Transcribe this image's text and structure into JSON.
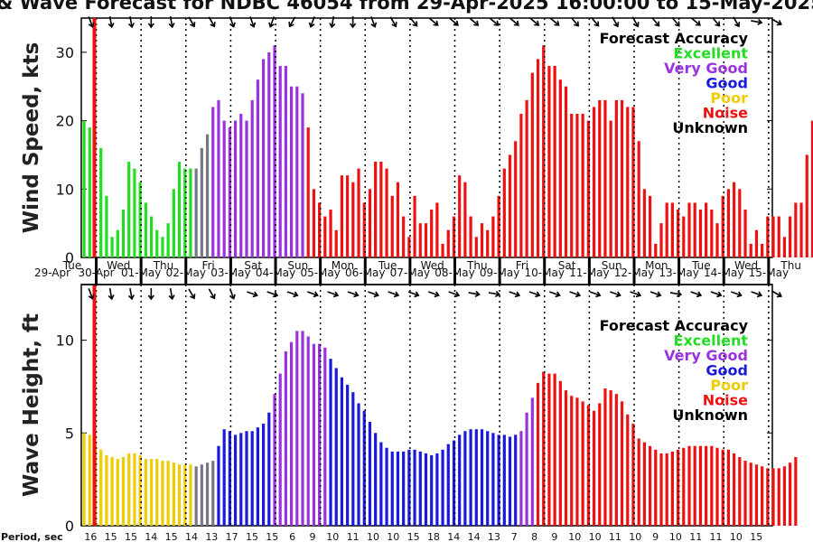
{
  "title": "& Wave Forecast for NDBC 46054 from 29-Apr-2025 16:00:00 to 15-May-2025",
  "colors": {
    "excellent": "#22dd22",
    "very_good": "#9933dd",
    "good": "#1a1add",
    "poor": "#eecc00",
    "noise": "#ee1111",
    "unknown": "#000000",
    "transition": "#777788"
  },
  "legend": {
    "heading": "Forecast Accuracy",
    "items": [
      {
        "label": "Excellent",
        "color": "#22dd22"
      },
      {
        "label": "Very Good",
        "color": "#9933dd"
      },
      {
        "label": "Good",
        "color": "#1a1add"
      },
      {
        "label": "Poor",
        "color": "#eecc00"
      },
      {
        "label": "Noise",
        "color": "#ee1111"
      },
      {
        "label": "Unknown",
        "color": "#000000"
      }
    ]
  },
  "days": [
    {
      "day": "Tue",
      "date": "29-Apr"
    },
    {
      "day": "Wed",
      "date": "30-Apr"
    },
    {
      "day": "Thu",
      "date": "01-May"
    },
    {
      "day": "Fri",
      "date": "02-May"
    },
    {
      "day": "Sat",
      "date": "03-May"
    },
    {
      "day": "Sun",
      "date": "04-May"
    },
    {
      "day": "Mon",
      "date": "05-May"
    },
    {
      "day": "Tue",
      "date": "06-May"
    },
    {
      "day": "Wed",
      "date": "07-May"
    },
    {
      "day": "Thu",
      "date": "08-May"
    },
    {
      "day": "Fri",
      "date": "09-May"
    },
    {
      "day": "Sat",
      "date": "10-May"
    },
    {
      "day": "Sun",
      "date": "11-May"
    },
    {
      "day": "Mon",
      "date": "12-May"
    },
    {
      "day": "Tue",
      "date": "13-May"
    },
    {
      "day": "Wed",
      "date": "14-May"
    },
    {
      "day": "Thu",
      "date": "15-May"
    }
  ],
  "period_label": "Period, sec",
  "periods": [
    "16",
    "15",
    "15",
    "14",
    "15",
    "14",
    "13",
    "17",
    "15",
    "15",
    "6",
    "9",
    "10",
    "11",
    "10",
    "10",
    "15",
    "18",
    "14",
    "14",
    "13",
    "7",
    "8",
    "9",
    "10",
    "10",
    "11",
    "10",
    "9",
    "10",
    "11",
    "11",
    "10",
    "15"
  ],
  "chart_data": [
    {
      "type": "bar",
      "name": "wind",
      "ylabel": "Wind Speed, kts",
      "ylim": [
        0,
        35
      ],
      "yticks": [
        0,
        10,
        20,
        30
      ],
      "x_unit": "hours from 29-Apr 16:00",
      "values": [
        20,
        19,
        0,
        16,
        9,
        3,
        4,
        7,
        14,
        13,
        11,
        8,
        6,
        4,
        3,
        5,
        10,
        14,
        13,
        13,
        13,
        16,
        18,
        22,
        23,
        20,
        19,
        20,
        21,
        20,
        23,
        26,
        29,
        30,
        31,
        28,
        28,
        25,
        25,
        24,
        19,
        10,
        8,
        6,
        7,
        4,
        12,
        12,
        11,
        13,
        8,
        10,
        14,
        14,
        13,
        9,
        11,
        6,
        3,
        9,
        5,
        5,
        7,
        8,
        2,
        4,
        6,
        12,
        11,
        6,
        3,
        5,
        4,
        6,
        9,
        13,
        15,
        17,
        21,
        23,
        27,
        29,
        31,
        28,
        28,
        26,
        25,
        21,
        21,
        21,
        20,
        22,
        23,
        23,
        20,
        23,
        23,
        22,
        22,
        17,
        10,
        9,
        2,
        5,
        8,
        8,
        7,
        6,
        8,
        8,
        7,
        8,
        7,
        5,
        9,
        10,
        11,
        10,
        7,
        2,
        4,
        2,
        6,
        6,
        6,
        3,
        6,
        8,
        8,
        15,
        20
      ],
      "directions_deg": [
        160,
        170,
        170,
        180,
        170,
        150,
        150,
        160,
        160,
        200,
        210,
        200,
        190,
        180,
        160,
        150,
        140,
        130,
        130,
        130,
        130,
        130,
        130,
        130,
        140,
        140,
        150,
        150,
        140,
        140,
        130,
        140,
        150,
        100,
        120
      ],
      "current_hour": 2
    },
    {
      "type": "bar",
      "name": "waves",
      "ylabel": "Wave Height, ft",
      "ylim": [
        0,
        13
      ],
      "yticks": [
        0,
        5,
        10
      ],
      "x_unit": "hours from 29-Apr 16:00",
      "values": [
        5.0,
        4.9,
        4.4,
        4.1,
        3.8,
        3.7,
        3.6,
        3.7,
        3.9,
        3.9,
        3.8,
        3.6,
        3.6,
        3.6,
        3.5,
        3.5,
        3.4,
        3.3,
        3.3,
        3.3,
        3.2,
        3.3,
        3.4,
        3.5,
        4.3,
        5.2,
        5.1,
        4.9,
        5.0,
        5.1,
        5.1,
        5.3,
        5.5,
        6.1,
        7.1,
        8.2,
        9.4,
        9.9,
        10.5,
        10.5,
        10.2,
        9.8,
        9.8,
        9.6,
        9.0,
        8.5,
        8.0,
        7.6,
        7.2,
        6.6,
        6.2,
        5.6,
        5.0,
        4.5,
        4.2,
        4.0,
        4.0,
        4.0,
        4.1,
        4.1,
        4.0,
        3.9,
        3.8,
        3.9,
        4.1,
        4.4,
        4.6,
        4.9,
        5.1,
        5.2,
        5.2,
        5.2,
        5.1,
        5.0,
        4.9,
        4.9,
        4.8,
        4.9,
        5.1,
        6.1,
        6.9,
        7.7,
        8.3,
        8.2,
        8.2,
        7.8,
        7.3,
        7.0,
        6.9,
        6.7,
        6.5,
        6.2,
        6.6,
        7.4,
        7.3,
        7.1,
        6.7,
        6.0,
        5.5,
        4.7,
        4.5,
        4.3,
        4.1,
        3.9,
        3.9,
        4.0,
        4.1,
        4.2,
        4.3,
        4.3,
        4.3,
        4.3,
        4.3,
        4.2,
        4.1,
        4.1,
        3.9,
        3.7,
        3.5,
        3.4,
        3.3,
        3.2,
        3.1,
        3.1,
        3.1,
        3.2,
        3.4,
        3.7
      ],
      "directions_deg": [
        160,
        170,
        170,
        180,
        170,
        150,
        150,
        160,
        110,
        110,
        110,
        110,
        110,
        110,
        110,
        110,
        110,
        110,
        110,
        100,
        100,
        110,
        110,
        110,
        110,
        110,
        110,
        110,
        110,
        100,
        110,
        110,
        110,
        110,
        120
      ],
      "current_hour": 2
    }
  ]
}
